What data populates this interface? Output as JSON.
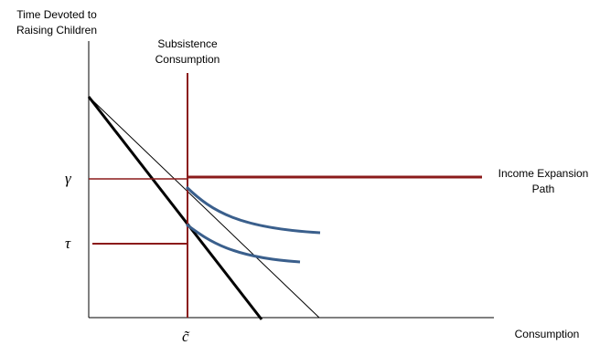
{
  "labels": {
    "y_axis_line1": "Time Devoted to",
    "y_axis_line2": "Raising Children",
    "x_axis": "Consumption",
    "subsistence_line1": "Subsistence",
    "subsistence_line2": "Consumption",
    "expansion_line1": "Income Expansion",
    "expansion_line2": "Path",
    "gamma": "γ",
    "tau": "τ",
    "c_tilde": "c̃"
  },
  "colors": {
    "axis": "#000000",
    "budget_thick": "#000000",
    "budget_thin": "#000000",
    "path": "#8b1a1a",
    "indifference": "#3a5f8c"
  }
}
